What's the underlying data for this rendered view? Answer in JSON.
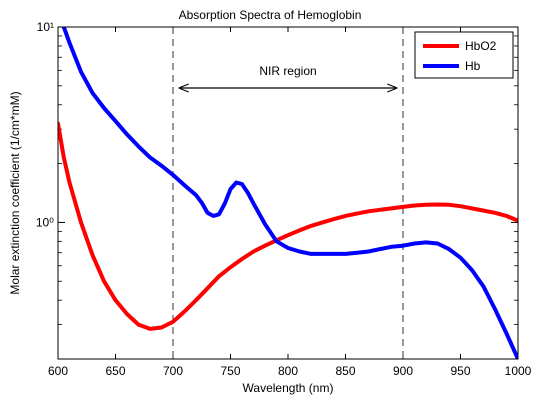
{
  "chart_data": {
    "type": "line",
    "title": "Absorption Spectra of Hemoglobin",
    "xlabel": "Wavelength (nm)",
    "ylabel": "Molar extinction coefficient (1/cm*mM)",
    "xlim": [
      600,
      1000
    ],
    "ylim": [
      0.2,
      10
    ],
    "yscale": "log",
    "xticks": [
      600,
      650,
      700,
      750,
      800,
      850,
      900,
      950,
      1000
    ],
    "xtick_labels": [
      "600",
      "650",
      "700",
      "750",
      "800",
      "850",
      "900",
      "950",
      "1000"
    ],
    "yticks": [
      1,
      10
    ],
    "ytick_labels": [
      "10⁰",
      "10¹"
    ],
    "grid": false,
    "legend_position": "top-right",
    "series": [
      {
        "name": "HbO2",
        "color": "#ff0000",
        "x": [
          600,
          605,
          610,
          620,
          630,
          640,
          650,
          660,
          670,
          680,
          690,
          700,
          710,
          720,
          730,
          740,
          750,
          760,
          770,
          780,
          790,
          800,
          810,
          820,
          830,
          840,
          850,
          860,
          870,
          880,
          890,
          900,
          910,
          920,
          930,
          940,
          950,
          960,
          970,
          980,
          990,
          1000
        ],
        "y": [
          3.2,
          2.15,
          1.6,
          1.0,
          0.68,
          0.5,
          0.4,
          0.34,
          0.3,
          0.285,
          0.29,
          0.31,
          0.35,
          0.4,
          0.46,
          0.53,
          0.59,
          0.65,
          0.71,
          0.76,
          0.81,
          0.86,
          0.91,
          0.96,
          1.0,
          1.04,
          1.08,
          1.11,
          1.14,
          1.16,
          1.18,
          1.2,
          1.22,
          1.23,
          1.235,
          1.23,
          1.21,
          1.18,
          1.15,
          1.12,
          1.08,
          1.02
        ]
      },
      {
        "name": "Hb",
        "color": "#0000ff",
        "x": [
          605,
          610,
          620,
          630,
          640,
          650,
          660,
          670,
          680,
          690,
          700,
          710,
          720,
          725,
          730,
          735,
          740,
          745,
          750,
          755,
          760,
          765,
          770,
          780,
          790,
          800,
          810,
          820,
          830,
          840,
          850,
          860,
          870,
          880,
          890,
          900,
          910,
          920,
          930,
          940,
          950,
          960,
          970,
          980,
          990,
          1000
        ],
        "y": [
          10.0,
          8.3,
          5.9,
          4.6,
          3.85,
          3.3,
          2.82,
          2.45,
          2.15,
          1.95,
          1.75,
          1.55,
          1.38,
          1.26,
          1.12,
          1.08,
          1.1,
          1.25,
          1.48,
          1.6,
          1.57,
          1.42,
          1.25,
          0.98,
          0.8,
          0.74,
          0.71,
          0.69,
          0.69,
          0.69,
          0.69,
          0.7,
          0.71,
          0.73,
          0.75,
          0.76,
          0.78,
          0.79,
          0.78,
          0.73,
          0.66,
          0.57,
          0.47,
          0.36,
          0.27,
          0.2
        ]
      }
    ],
    "reference_lines": [
      {
        "axis": "x",
        "value": 700,
        "style": "dashed"
      },
      {
        "axis": "x",
        "value": 900,
        "style": "dashed"
      }
    ],
    "annotations": [
      {
        "text": "NIR region",
        "type": "double-arrow",
        "from_x": 705,
        "to_x": 895,
        "y": 5
      }
    ]
  }
}
